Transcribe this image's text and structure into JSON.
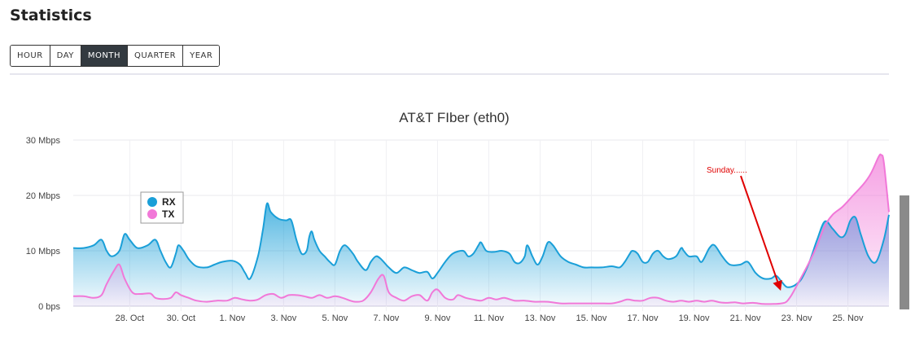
{
  "page": {
    "title": "Statistics"
  },
  "range_buttons": [
    {
      "label": "HOUR",
      "active": false
    },
    {
      "label": "DAY",
      "active": false
    },
    {
      "label": "MONTH",
      "active": true
    },
    {
      "label": "QUARTER",
      "active": false
    },
    {
      "label": "YEAR",
      "active": false
    }
  ],
  "colors": {
    "rx": "#1a9fd8",
    "tx": "#f178d8",
    "annotation": "#e00000"
  },
  "chart_data": {
    "type": "area",
    "title": "AT&T FIber (eth0)",
    "x_unit": "day",
    "x_start": "26 Oct",
    "xlim": [
      0,
      30.4
    ],
    "x_ticks": [
      {
        "x": 2,
        "label": "28. Oct"
      },
      {
        "x": 4,
        "label": "30. Oct"
      },
      {
        "x": 6,
        "label": "1. Nov"
      },
      {
        "x": 8,
        "label": "3. Nov"
      },
      {
        "x": 10,
        "label": "5. Nov"
      },
      {
        "x": 12,
        "label": "7. Nov"
      },
      {
        "x": 14,
        "label": "9. Nov"
      },
      {
        "x": 16,
        "label": "11. Nov"
      },
      {
        "x": 18,
        "label": "13. Nov"
      },
      {
        "x": 20,
        "label": "15. Nov"
      },
      {
        "x": 22,
        "label": "17. Nov"
      },
      {
        "x": 24,
        "label": "19. Nov"
      },
      {
        "x": 26,
        "label": "21. Nov"
      },
      {
        "x": 28,
        "label": "23. Nov"
      },
      {
        "x": 30,
        "label": "25. Nov"
      }
    ],
    "ylim": [
      0,
      30
    ],
    "y_ticks": [
      {
        "v": 0,
        "label": "0 bps"
      },
      {
        "v": 10,
        "label": "10 Mbps"
      },
      {
        "v": 20,
        "label": "20 Mbps"
      },
      {
        "v": 30,
        "label": "30 Mbps"
      }
    ],
    "legend_position": "upper-left",
    "grid": true,
    "series": [
      {
        "name": "RX",
        "color": "#1a9fd8",
        "points": [
          [
            0,
            10.5
          ],
          [
            0.4,
            10.5
          ],
          [
            0.8,
            11.0
          ],
          [
            1.1,
            12.0
          ],
          [
            1.3,
            10.0
          ],
          [
            1.5,
            9.0
          ],
          [
            1.8,
            10.0
          ],
          [
            2.0,
            13.0
          ],
          [
            2.2,
            12.0
          ],
          [
            2.5,
            10.5
          ],
          [
            2.9,
            11.0
          ],
          [
            3.2,
            12.0
          ],
          [
            3.4,
            10.0
          ],
          [
            3.6,
            8.0
          ],
          [
            3.8,
            7.0
          ],
          [
            4.0,
            9.5
          ],
          [
            4.1,
            11.0
          ],
          [
            4.3,
            10.0
          ],
          [
            4.5,
            8.5
          ],
          [
            4.8,
            7.2
          ],
          [
            5.2,
            7.0
          ],
          [
            5.5,
            7.5
          ],
          [
            5.8,
            8.0
          ],
          [
            6.2,
            8.2
          ],
          [
            6.5,
            7.5
          ],
          [
            6.7,
            6.0
          ],
          [
            6.9,
            5.0
          ],
          [
            7.2,
            9.0
          ],
          [
            7.4,
            14.0
          ],
          [
            7.55,
            18.5
          ],
          [
            7.7,
            17.0
          ],
          [
            8.0,
            15.8
          ],
          [
            8.3,
            15.5
          ],
          [
            8.5,
            15.5
          ],
          [
            8.7,
            12.0
          ],
          [
            8.9,
            9.5
          ],
          [
            9.1,
            10.0
          ],
          [
            9.2,
            12.5
          ],
          [
            9.3,
            13.5
          ],
          [
            9.4,
            12.0
          ],
          [
            9.6,
            10.0
          ],
          [
            9.8,
            9.0
          ],
          [
            10.0,
            8.0
          ],
          [
            10.2,
            7.5
          ],
          [
            10.4,
            10.0
          ],
          [
            10.6,
            11.0
          ],
          [
            10.9,
            9.5
          ],
          [
            11.1,
            8.0
          ],
          [
            11.4,
            6.5
          ],
          [
            11.6,
            8.0
          ],
          [
            11.8,
            9.0
          ],
          [
            12.0,
            8.5
          ],
          [
            12.3,
            7.0
          ],
          [
            12.6,
            6.0
          ],
          [
            12.9,
            7.0
          ],
          [
            13.2,
            6.5
          ],
          [
            13.5,
            6.0
          ],
          [
            13.8,
            6.2
          ],
          [
            14.0,
            5.0
          ],
          [
            14.2,
            6.0
          ],
          [
            14.5,
            8.0
          ],
          [
            14.8,
            9.5
          ],
          [
            15.2,
            10.0
          ],
          [
            15.4,
            9.0
          ],
          [
            15.6,
            9.5
          ],
          [
            15.8,
            11.0
          ],
          [
            15.9,
            11.5
          ],
          [
            16.1,
            10.0
          ],
          [
            16.4,
            9.8
          ],
          [
            16.7,
            10.0
          ],
          [
            17.0,
            9.5
          ],
          [
            17.2,
            8.0
          ],
          [
            17.4,
            7.8
          ],
          [
            17.6,
            9.0
          ],
          [
            17.7,
            11.0
          ],
          [
            17.9,
            9.0
          ],
          [
            18.1,
            7.5
          ],
          [
            18.3,
            9.0
          ],
          [
            18.5,
            11.5
          ],
          [
            18.7,
            11.0
          ],
          [
            19.0,
            9.0
          ],
          [
            19.3,
            8.0
          ],
          [
            19.6,
            7.5
          ],
          [
            19.9,
            7.0
          ],
          [
            20.2,
            7.0
          ],
          [
            20.6,
            7.0
          ],
          [
            21.0,
            7.2
          ],
          [
            21.3,
            7.0
          ],
          [
            21.5,
            8.0
          ],
          [
            21.7,
            9.5
          ],
          [
            21.8,
            10.0
          ],
          [
            22.0,
            9.5
          ],
          [
            22.2,
            8.0
          ],
          [
            22.4,
            8.0
          ],
          [
            22.6,
            9.5
          ],
          [
            22.8,
            10.0
          ],
          [
            23.0,
            9.0
          ],
          [
            23.2,
            8.5
          ],
          [
            23.5,
            9.0
          ],
          [
            23.7,
            10.5
          ],
          [
            23.8,
            10.0
          ],
          [
            24.0,
            9.0
          ],
          [
            24.3,
            9.0
          ],
          [
            24.5,
            8.0
          ],
          [
            24.8,
            10.5
          ],
          [
            25.0,
            11.0
          ],
          [
            25.3,
            9.0
          ],
          [
            25.6,
            7.5
          ],
          [
            26.0,
            7.5
          ],
          [
            26.3,
            8.0
          ],
          [
            26.6,
            6.0
          ],
          [
            26.9,
            5.0
          ],
          [
            27.2,
            5.0
          ],
          [
            27.4,
            5.5
          ],
          [
            27.6,
            4.5
          ],
          [
            27.8,
            3.5
          ],
          [
            28.0,
            3.5
          ],
          [
            28.2,
            4.0
          ],
          [
            28.4,
            5.0
          ],
          [
            28.7,
            8.0
          ],
          [
            29.0,
            12.0
          ],
          [
            29.3,
            15.3
          ],
          [
            29.6,
            14.0
          ],
          [
            29.9,
            12.5
          ],
          [
            30.1,
            13.0
          ],
          [
            30.3,
            15.5
          ],
          [
            30.5,
            16.0
          ],
          [
            30.7,
            13.0
          ],
          [
            31.0,
            9.0
          ],
          [
            31.3,
            8.0
          ],
          [
            31.6,
            12.0
          ],
          [
            31.8,
            16.5
          ]
        ]
      },
      {
        "name": "TX",
        "color": "#f178d8",
        "points": [
          [
            0,
            1.8
          ],
          [
            0.4,
            1.8
          ],
          [
            0.8,
            1.5
          ],
          [
            1.1,
            2.0
          ],
          [
            1.3,
            4.0
          ],
          [
            1.6,
            6.5
          ],
          [
            1.8,
            7.5
          ],
          [
            2.0,
            5.0
          ],
          [
            2.3,
            2.5
          ],
          [
            2.6,
            2.2
          ],
          [
            3.0,
            2.3
          ],
          [
            3.2,
            1.5
          ],
          [
            3.5,
            1.3
          ],
          [
            3.8,
            1.5
          ],
          [
            4.0,
            2.5
          ],
          [
            4.2,
            2.0
          ],
          [
            4.5,
            1.5
          ],
          [
            4.8,
            1.0
          ],
          [
            5.2,
            0.8
          ],
          [
            5.6,
            1.0
          ],
          [
            6.0,
            1.0
          ],
          [
            6.3,
            1.5
          ],
          [
            6.6,
            1.2
          ],
          [
            6.9,
            1.0
          ],
          [
            7.2,
            1.2
          ],
          [
            7.5,
            2.0
          ],
          [
            7.8,
            2.2
          ],
          [
            8.1,
            1.5
          ],
          [
            8.4,
            2.0
          ],
          [
            8.7,
            2.0
          ],
          [
            9.0,
            1.8
          ],
          [
            9.3,
            1.5
          ],
          [
            9.6,
            2.0
          ],
          [
            9.9,
            1.5
          ],
          [
            10.2,
            1.8
          ],
          [
            10.5,
            1.5
          ],
          [
            10.8,
            1.0
          ],
          [
            11.0,
            0.8
          ],
          [
            11.3,
            1.0
          ],
          [
            11.6,
            2.5
          ],
          [
            11.9,
            5.0
          ],
          [
            12.1,
            5.5
          ],
          [
            12.3,
            2.5
          ],
          [
            12.6,
            1.5
          ],
          [
            12.9,
            1.0
          ],
          [
            13.2,
            1.8
          ],
          [
            13.5,
            2.0
          ],
          [
            13.8,
            1.0
          ],
          [
            14.0,
            2.5
          ],
          [
            14.2,
            3.0
          ],
          [
            14.5,
            1.5
          ],
          [
            14.8,
            1.2
          ],
          [
            15.0,
            2.0
          ],
          [
            15.3,
            1.5
          ],
          [
            15.6,
            1.2
          ],
          [
            15.9,
            1.0
          ],
          [
            16.2,
            1.5
          ],
          [
            16.5,
            1.2
          ],
          [
            16.8,
            1.5
          ],
          [
            17.2,
            1.0
          ],
          [
            17.6,
            1.0
          ],
          [
            18.0,
            0.8
          ],
          [
            18.5,
            0.8
          ],
          [
            19.0,
            0.5
          ],
          [
            19.5,
            0.5
          ],
          [
            20.0,
            0.5
          ],
          [
            20.5,
            0.5
          ],
          [
            21.0,
            0.5
          ],
          [
            21.3,
            0.8
          ],
          [
            21.6,
            1.2
          ],
          [
            21.9,
            1.0
          ],
          [
            22.2,
            1.0
          ],
          [
            22.5,
            1.5
          ],
          [
            22.8,
            1.5
          ],
          [
            23.1,
            1.0
          ],
          [
            23.4,
            0.8
          ],
          [
            23.7,
            1.0
          ],
          [
            24.0,
            0.8
          ],
          [
            24.3,
            1.0
          ],
          [
            24.6,
            0.8
          ],
          [
            24.9,
            1.0
          ],
          [
            25.2,
            0.7
          ],
          [
            25.5,
            0.6
          ],
          [
            25.8,
            0.7
          ],
          [
            26.1,
            0.5
          ],
          [
            26.5,
            0.6
          ],
          [
            26.9,
            0.4
          ],
          [
            27.3,
            0.4
          ],
          [
            27.6,
            0.5
          ],
          [
            27.8,
            0.8
          ],
          [
            28.0,
            2.0
          ],
          [
            28.3,
            4.5
          ],
          [
            28.7,
            8.0
          ],
          [
            29.0,
            11.0
          ],
          [
            29.3,
            14.5
          ],
          [
            29.6,
            16.5
          ],
          [
            30.0,
            18.0
          ],
          [
            30.4,
            20.0
          ],
          [
            30.8,
            22.0
          ],
          [
            31.1,
            24.0
          ],
          [
            31.4,
            27.0
          ],
          [
            31.5,
            27.3
          ],
          [
            31.6,
            26.0
          ],
          [
            31.8,
            17.0
          ]
        ]
      }
    ],
    "annotation": {
      "text": "Sunday......",
      "arrow_to": [
        27.55,
        3.2
      ]
    }
  }
}
